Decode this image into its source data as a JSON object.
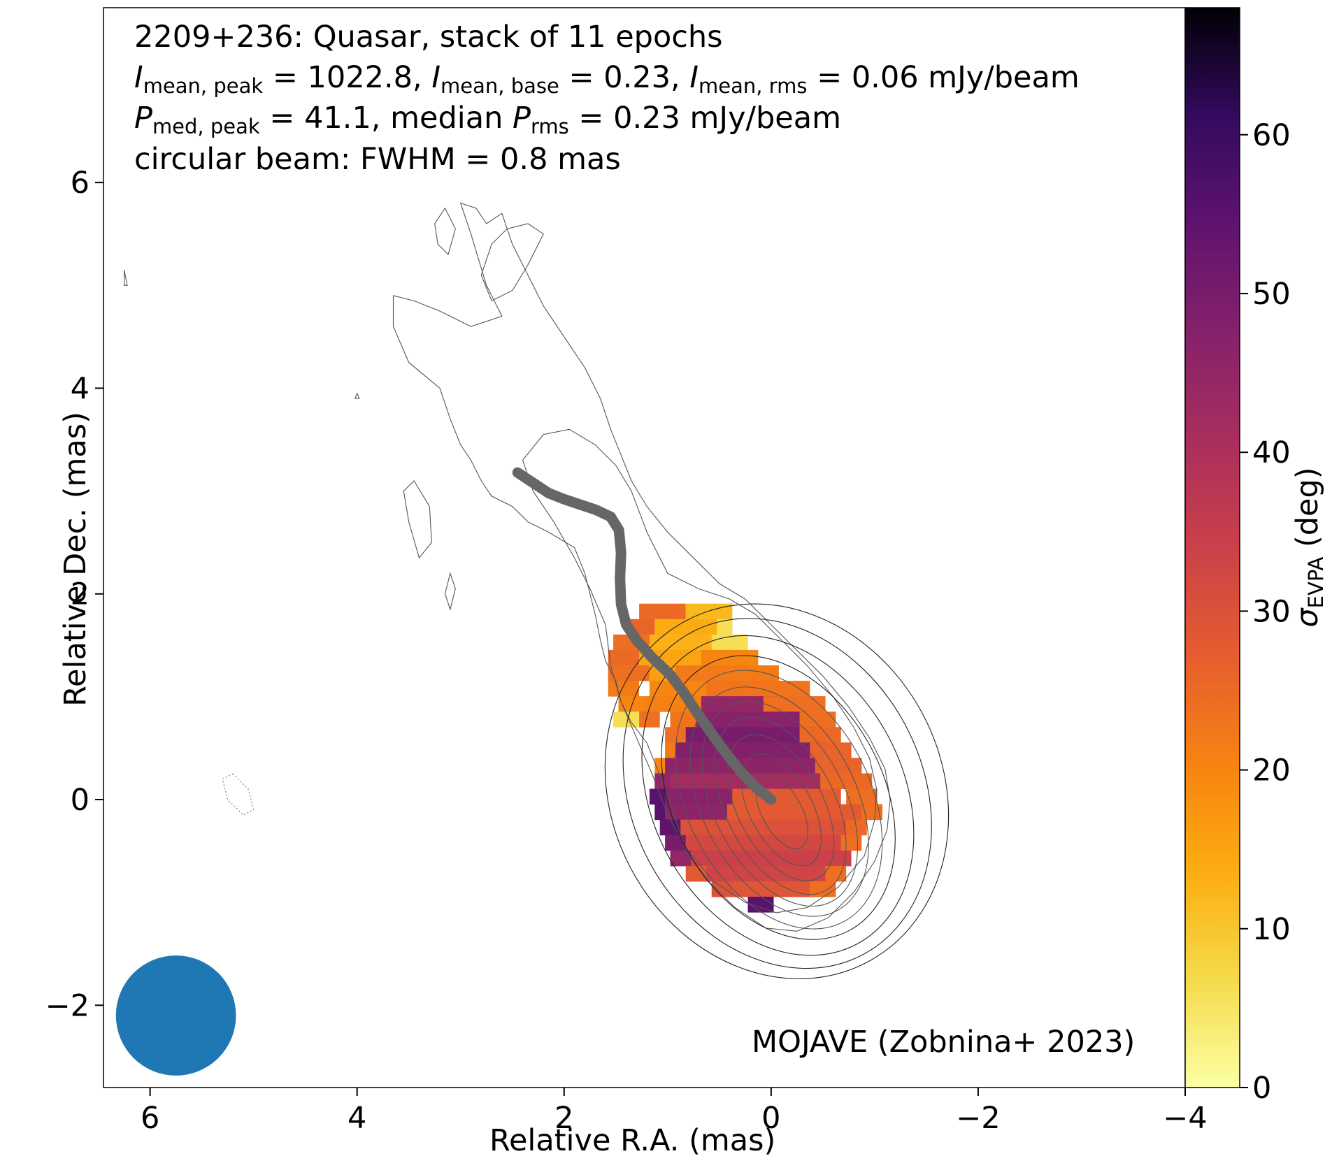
{
  "chart_data": {
    "type": "heatmap",
    "title_lines": {
      "line1": "2209+236: Quasar, stack of 11 epochs",
      "line2": {
        "i_peak_sym": "I",
        "i_peak_sub": "mean, peak",
        "i_peak_val": " = 1022.8, ",
        "i_base_sym": "I",
        "i_base_sub": "mean, base",
        "i_base_val": " = 0.23, ",
        "i_rms_sym": "I",
        "i_rms_sub": "mean, rms",
        "i_rms_val": " = 0.06 mJy/beam"
      },
      "line3": {
        "p_peak_sym": "P",
        "p_peak_sub": "med, peak",
        "p_peak_val": " = 41.1, median ",
        "p_rms_sym": "P",
        "p_rms_sub": "rms",
        "p_rms_val": " = 0.23 mJy/beam"
      },
      "line4": "circular beam: FWHM = 0.8 mas"
    },
    "xlabel": "Relative R.A. (mas)",
    "ylabel": "Relative Dec. (mas)",
    "xlim": [
      6.45,
      -4.0
    ],
    "ylim": [
      -2.8,
      7.7
    ],
    "x_ticks": [
      6,
      4,
      2,
      0,
      -2,
      -4
    ],
    "x_tick_labels": [
      "6",
      "4",
      "2",
      "0",
      "−2",
      "−4"
    ],
    "y_ticks": [
      -2,
      0,
      2,
      4,
      6
    ],
    "y_tick_labels": [
      "−2",
      "0",
      "2",
      "4",
      "6"
    ],
    "colorbar": {
      "label_sym": "σ",
      "label_sub": "EVPA",
      "label_unit": " (deg)",
      "range": [
        0,
        68
      ],
      "ticks": [
        0,
        10,
        20,
        30,
        40,
        50,
        60
      ],
      "tick_labels": [
        "0",
        "10",
        "20",
        "30",
        "40",
        "50",
        "60"
      ],
      "colormap": "inferno_r"
    },
    "credit": "MOJAVE (Zobnina+ 2023)",
    "beam": {
      "x": 5.75,
      "y": -2.1,
      "fwhm": 0.8,
      "color": "#1f77b4"
    },
    "ridge_line": {
      "color": "#666666",
      "points": [
        [
          2.45,
          3.18
        ],
        [
          2.3,
          3.08
        ],
        [
          2.15,
          2.98
        ],
        [
          2.0,
          2.92
        ],
        [
          1.85,
          2.87
        ],
        [
          1.7,
          2.82
        ],
        [
          1.55,
          2.75
        ],
        [
          1.47,
          2.62
        ],
        [
          1.45,
          2.4
        ],
        [
          1.46,
          2.15
        ],
        [
          1.45,
          1.9
        ],
        [
          1.4,
          1.7
        ],
        [
          1.3,
          1.55
        ],
        [
          1.15,
          1.38
        ],
        [
          0.98,
          1.22
        ],
        [
          0.85,
          1.05
        ],
        [
          0.72,
          0.85
        ],
        [
          0.58,
          0.65
        ],
        [
          0.45,
          0.47
        ],
        [
          0.3,
          0.28
        ],
        [
          0.15,
          0.12
        ],
        [
          0.0,
          0.0
        ]
      ]
    },
    "core": {
      "x": -0.05,
      "y": 0.1,
      "sigma_x": 0.55,
      "sigma_y": 0.6
    },
    "contour_levels_sigma": [
      0.35,
      0.55,
      0.75,
      0.95,
      1.15,
      1.35,
      1.6,
      1.85,
      2.2,
      2.55,
      2.9
    ],
    "outer_contours": [
      [
        [
          3.0,
          5.8
        ],
        [
          2.9,
          5.5
        ],
        [
          2.75,
          5.0
        ],
        [
          2.6,
          4.7
        ],
        [
          2.9,
          4.6
        ],
        [
          3.2,
          4.75
        ],
        [
          3.45,
          4.85
        ],
        [
          3.65,
          4.9
        ],
        [
          3.65,
          4.6
        ],
        [
          3.5,
          4.25
        ],
        [
          3.2,
          4.0
        ],
        [
          3.1,
          3.7
        ],
        [
          3.0,
          3.45
        ],
        [
          2.9,
          3.3
        ],
        [
          2.8,
          3.1
        ],
        [
          2.7,
          2.95
        ],
        [
          2.5,
          2.85
        ],
        [
          2.35,
          2.7
        ],
        [
          2.15,
          2.6
        ],
        [
          1.9,
          2.45
        ],
        [
          1.8,
          2.2
        ],
        [
          1.75,
          2.0
        ],
        [
          1.7,
          1.8
        ],
        [
          1.65,
          1.55
        ],
        [
          1.6,
          1.35
        ],
        [
          1.5,
          1.15
        ],
        [
          1.45,
          0.95
        ],
        [
          1.35,
          0.75
        ],
        [
          1.2,
          0.55
        ],
        [
          1.1,
          0.3
        ],
        [
          1.0,
          0.05
        ],
        [
          0.92,
          -0.2
        ],
        [
          0.82,
          -0.5
        ],
        [
          0.6,
          -0.8
        ],
        [
          0.35,
          -1.05
        ],
        [
          0.05,
          -1.25
        ],
        [
          -0.25,
          -1.28
        ],
        [
          -0.55,
          -1.15
        ],
        [
          -0.8,
          -0.9
        ],
        [
          -1.0,
          -0.6
        ],
        [
          -1.12,
          -0.3
        ],
        [
          -1.15,
          0.0
        ],
        [
          -1.1,
          0.3
        ],
        [
          -0.95,
          0.6
        ],
        [
          -0.75,
          0.9
        ],
        [
          -0.5,
          1.2
        ],
        [
          -0.25,
          1.45
        ],
        [
          0.0,
          1.7
        ],
        [
          0.25,
          1.95
        ],
        [
          0.5,
          2.1
        ],
        [
          0.75,
          2.35
        ],
        [
          1.0,
          2.6
        ],
        [
          1.2,
          2.85
        ],
        [
          1.35,
          3.1
        ],
        [
          1.45,
          3.35
        ],
        [
          1.55,
          3.6
        ],
        [
          1.65,
          3.9
        ],
        [
          1.8,
          4.2
        ],
        [
          2.0,
          4.5
        ],
        [
          2.2,
          4.8
        ],
        [
          2.35,
          5.1
        ],
        [
          2.5,
          5.4
        ],
        [
          2.6,
          5.7
        ],
        [
          2.75,
          5.6
        ],
        [
          2.85,
          5.75
        ],
        [
          3.0,
          5.8
        ]
      ],
      [
        [
          2.2,
          5.5
        ],
        [
          2.35,
          5.2
        ],
        [
          2.5,
          4.95
        ],
        [
          2.7,
          4.85
        ],
        [
          2.8,
          5.1
        ],
        [
          2.7,
          5.4
        ],
        [
          2.55,
          5.55
        ],
        [
          2.35,
          5.6
        ],
        [
          2.2,
          5.5
        ]
      ],
      [
        [
          3.15,
          5.75
        ],
        [
          3.05,
          5.55
        ],
        [
          3.12,
          5.3
        ],
        [
          3.22,
          5.4
        ],
        [
          3.25,
          5.6
        ],
        [
          3.15,
          5.75
        ]
      ],
      [
        [
          3.4,
          2.35
        ],
        [
          3.5,
          2.7
        ],
        [
          3.55,
          3.0
        ],
        [
          3.45,
          3.1
        ],
        [
          3.3,
          2.85
        ],
        [
          3.28,
          2.5
        ],
        [
          3.4,
          2.35
        ]
      ],
      [
        [
          3.1,
          2.2
        ],
        [
          3.15,
          2.0
        ],
        [
          3.1,
          1.85
        ],
        [
          3.05,
          2.05
        ],
        [
          3.1,
          2.2
        ]
      ],
      [
        [
          6.25,
          5.15
        ],
        [
          6.22,
          5.0
        ],
        [
          6.25,
          5.0
        ],
        [
          6.25,
          5.15
        ]
      ],
      [
        [
          4.0,
          3.95
        ],
        [
          3.98,
          3.9
        ],
        [
          4.02,
          3.9
        ],
        [
          4.0,
          3.95
        ]
      ]
    ],
    "dashed_contours": [
      [
        [
          5.2,
          0.25
        ],
        [
          5.05,
          0.1
        ],
        [
          5.0,
          -0.1
        ],
        [
          5.1,
          -0.15
        ],
        [
          5.25,
          0.0
        ],
        [
          5.3,
          0.2
        ],
        [
          5.2,
          0.25
        ]
      ]
    ],
    "mid_contours": [
      [
        [
          1.75,
          2.05
        ],
        [
          1.6,
          1.7
        ],
        [
          1.55,
          1.3
        ],
        [
          1.45,
          0.95
        ],
        [
          1.3,
          0.6
        ],
        [
          1.15,
          0.25
        ],
        [
          1.0,
          -0.15
        ],
        [
          0.8,
          -0.5
        ],
        [
          0.55,
          -0.8
        ],
        [
          0.25,
          -1.0
        ],
        [
          -0.05,
          -1.1
        ],
        [
          -0.35,
          -1.05
        ],
        [
          -0.65,
          -0.85
        ],
        [
          -0.9,
          -0.55
        ],
        [
          -1.0,
          -0.2
        ],
        [
          -1.02,
          0.1
        ],
        [
          -0.95,
          0.4
        ],
        [
          -0.8,
          0.7
        ],
        [
          -0.6,
          1.0
        ],
        [
          -0.35,
          1.3
        ],
        [
          -0.1,
          1.55
        ],
        [
          0.15,
          1.8
        ],
        [
          0.4,
          1.95
        ],
        [
          0.7,
          2.05
        ],
        [
          1.0,
          2.2
        ],
        [
          1.2,
          2.6
        ],
        [
          1.35,
          3.0
        ],
        [
          1.5,
          3.25
        ],
        [
          1.7,
          3.45
        ],
        [
          1.95,
          3.6
        ],
        [
          2.2,
          3.55
        ],
        [
          2.4,
          3.3
        ],
        [
          2.3,
          3.0
        ],
        [
          2.1,
          2.7
        ],
        [
          1.9,
          2.35
        ],
        [
          1.75,
          2.05
        ]
      ]
    ],
    "pixel_map": {
      "cell": 0.15,
      "rows": [
        {
          "y": 1.83,
          "runs": [
            [
              1.2,
              0.9,
              25
            ],
            [
              0.75,
              0.45,
              12
            ]
          ]
        },
        {
          "y": 1.68,
          "runs": [
            [
              1.3,
              1.05,
              26
            ],
            [
              1.05,
              0.45,
              14
            ],
            [
              0.45,
              0.45,
              6
            ]
          ]
        },
        {
          "y": 1.53,
          "runs": [
            [
              1.45,
              1.1,
              24
            ],
            [
              1.1,
              0.5,
              13
            ],
            [
              0.5,
              0.3,
              6
            ]
          ]
        },
        {
          "y": 1.38,
          "runs": [
            [
              1.5,
              1.2,
              25
            ],
            [
              1.2,
              0.6,
              15
            ],
            [
              0.6,
              0.2,
              20
            ]
          ]
        },
        {
          "y": 1.23,
          "runs": [
            [
              1.5,
              1.25,
              24
            ],
            [
              1.1,
              0.85,
              16
            ],
            [
              0.85,
              0.0,
              22
            ]
          ]
        },
        {
          "y": 1.08,
          "runs": [
            [
              1.5,
              1.35,
              22
            ],
            [
              1.1,
              0.55,
              20
            ],
            [
              0.55,
              -0.3,
              23
            ]
          ]
        },
        {
          "y": 0.93,
          "runs": [
            [
              1.4,
              1.2,
              20
            ],
            [
              1.15,
              0.6,
              21
            ],
            [
              0.6,
              0.0,
              45
            ],
            [
              0.0,
              -0.45,
              24
            ]
          ]
        },
        {
          "y": 0.78,
          "runs": [
            [
              1.45,
              1.35,
              6
            ],
            [
              1.2,
              1.15,
              24
            ],
            [
              0.9,
              0.65,
              23
            ],
            [
              0.65,
              -0.35,
              47
            ],
            [
              -0.35,
              -0.55,
              24
            ]
          ]
        },
        {
          "y": 0.63,
          "runs": [
            [
              0.95,
              0.75,
              24
            ],
            [
              0.75,
              -0.35,
              50
            ],
            [
              -0.35,
              -0.6,
              25
            ]
          ]
        },
        {
          "y": 0.48,
          "runs": [
            [
              0.95,
              0.85,
              22
            ],
            [
              0.85,
              -0.45,
              48
            ],
            [
              -0.45,
              -0.7,
              26
            ]
          ]
        },
        {
          "y": 0.33,
          "runs": [
            [
              1.05,
              0.95,
              20
            ],
            [
              0.95,
              -0.5,
              46
            ],
            [
              -0.5,
              -0.8,
              26
            ]
          ]
        },
        {
          "y": 0.18,
          "runs": [
            [
              1.05,
              0.9,
              45
            ],
            [
              0.9,
              -0.55,
              42
            ],
            [
              -0.55,
              -0.9,
              25
            ]
          ]
        },
        {
          "y": 0.03,
          "runs": [
            [
              1.1,
              0.95,
              55
            ],
            [
              0.95,
              0.3,
              47
            ],
            [
              0.3,
              -0.6,
              28
            ],
            [
              -0.8,
              -0.95,
              24
            ]
          ]
        },
        {
          "y": -0.12,
          "runs": [
            [
              1.05,
              0.95,
              55
            ],
            [
              0.95,
              0.35,
              46
            ],
            [
              0.35,
              -0.85,
              28
            ],
            [
              -0.95,
              -1.0,
              24
            ]
          ]
        },
        {
          "y": -0.27,
          "runs": [
            [
              1.0,
              0.8,
              54
            ],
            [
              0.8,
              -0.75,
              30
            ],
            [
              -0.8,
              -0.85,
              25
            ]
          ]
        },
        {
          "y": -0.42,
          "runs": [
            [
              0.95,
              0.75,
              50
            ],
            [
              0.75,
              -0.7,
              32
            ],
            [
              -0.75,
              -0.8,
              24
            ]
          ]
        },
        {
          "y": -0.57,
          "runs": [
            [
              0.9,
              0.7,
              45
            ],
            [
              0.7,
              -0.7,
              34
            ]
          ]
        },
        {
          "y": -0.72,
          "runs": [
            [
              0.75,
              0.55,
              28
            ],
            [
              0.55,
              -0.55,
              33
            ],
            [
              -0.6,
              -0.65,
              24
            ]
          ]
        },
        {
          "y": -0.87,
          "runs": [
            [
              0.5,
              0.3,
              30
            ],
            [
              0.3,
              -0.45,
              29
            ],
            [
              -0.45,
              -0.55,
              24
            ]
          ]
        },
        {
          "y": -1.02,
          "runs": [
            [
              0.15,
              0.05,
              55
            ]
          ]
        }
      ]
    }
  }
}
